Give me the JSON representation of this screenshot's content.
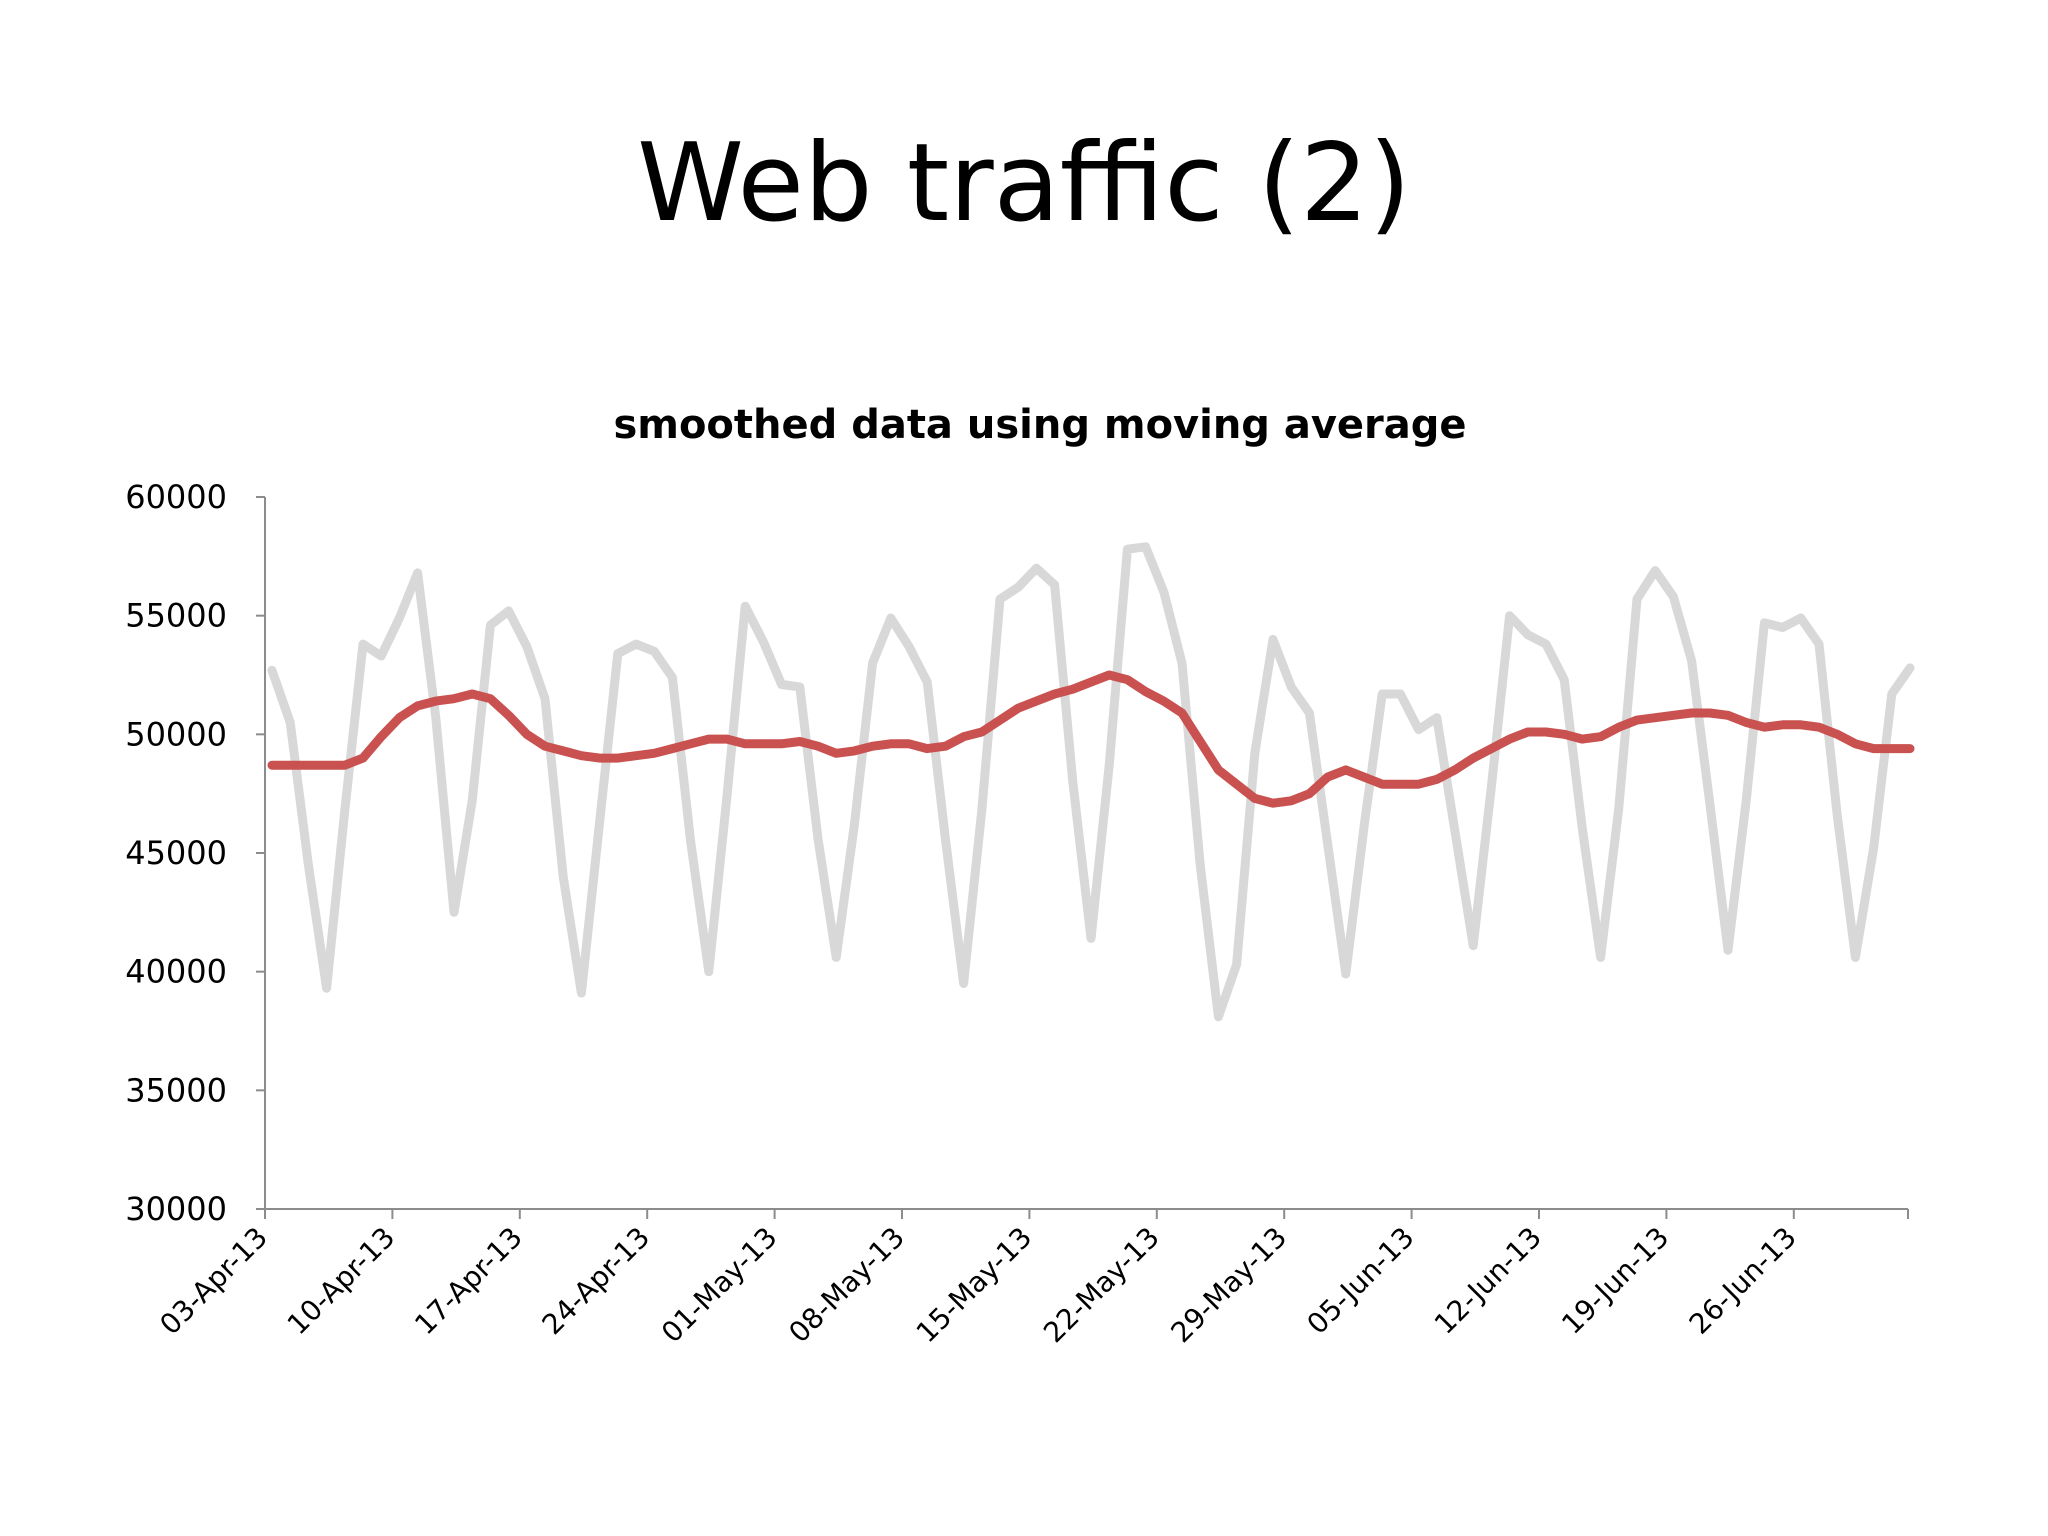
{
  "slide": {
    "title": "Web traffic (2)"
  },
  "chart_data": {
    "type": "line",
    "title": "smoothed data using moving average",
    "xlabel": "",
    "ylabel": "",
    "ylim": [
      30000,
      60000
    ],
    "y_ticks": [
      30000,
      35000,
      40000,
      45000,
      50000,
      55000,
      60000
    ],
    "x_start": "03-Apr-13",
    "x_tick_labels": [
      "03-Apr-13",
      "10-Apr-13",
      "17-Apr-13",
      "24-Apr-13",
      "01-May-13",
      "08-May-13",
      "15-May-13",
      "22-May-13",
      "29-May-13",
      "05-Jun-13",
      "12-Jun-13",
      "19-Jun-13",
      "26-Jun-13"
    ],
    "x_tick_step_days": 7,
    "x_days": 92,
    "grid": false,
    "legend": "none",
    "series": [
      {
        "role": "raw",
        "color": "#d8d8d8",
        "values": [
          52700,
          50500,
          44500,
          39300,
          46800,
          53800,
          53300,
          54900,
          56800,
          50700,
          42500,
          47200,
          54600,
          55200,
          53700,
          51500,
          44000,
          39100,
          46300,
          53400,
          53800,
          53500,
          52400,
          45500,
          40000,
          47400,
          55400,
          53900,
          52100,
          52000,
          45600,
          40600,
          46200,
          53000,
          54900,
          53700,
          52200,
          45600,
          39500,
          46800,
          55700,
          56200,
          57000,
          56300,
          48000,
          41400,
          48700,
          57800,
          57900,
          56000,
          53000,
          44500,
          38100,
          40300,
          49200,
          54000,
          52000,
          50900,
          45400,
          39900,
          46100,
          51700,
          51700,
          50200,
          50700,
          45900,
          41100,
          47800,
          55000,
          54200,
          53800,
          52300,
          46000,
          40600,
          46900,
          55700,
          56900,
          55800,
          53100,
          47100,
          40900,
          47200,
          54700,
          54500,
          54900,
          53800,
          46600,
          40600,
          45200,
          51700,
          52800
        ]
      },
      {
        "role": "moving-average",
        "color": "#c9514f",
        "values": [
          48700,
          48700,
          48700,
          48700,
          48700,
          49000,
          49900,
          50700,
          51200,
          51400,
          51500,
          51700,
          51500,
          50800,
          50000,
          49500,
          49300,
          49100,
          49000,
          49000,
          49100,
          49200,
          49400,
          49600,
          49800,
          49800,
          49600,
          49600,
          49600,
          49700,
          49500,
          49200,
          49300,
          49500,
          49600,
          49600,
          49400,
          49500,
          49900,
          50100,
          50600,
          51100,
          51400,
          51700,
          51900,
          52200,
          52500,
          52300,
          51800,
          51400,
          50900,
          49700,
          48500,
          47900,
          47300,
          47100,
          47200,
          47500,
          48200,
          48500,
          48200,
          47900,
          47900,
          47900,
          48100,
          48500,
          49000,
          49400,
          49800,
          50100,
          50100,
          50000,
          49800,
          49900,
          50300,
          50600,
          50700,
          50800,
          50900,
          50900,
          50800,
          50500,
          50300,
          50400,
          50400,
          50300,
          50000,
          49600,
          49400,
          49400,
          49400
        ]
      }
    ]
  }
}
